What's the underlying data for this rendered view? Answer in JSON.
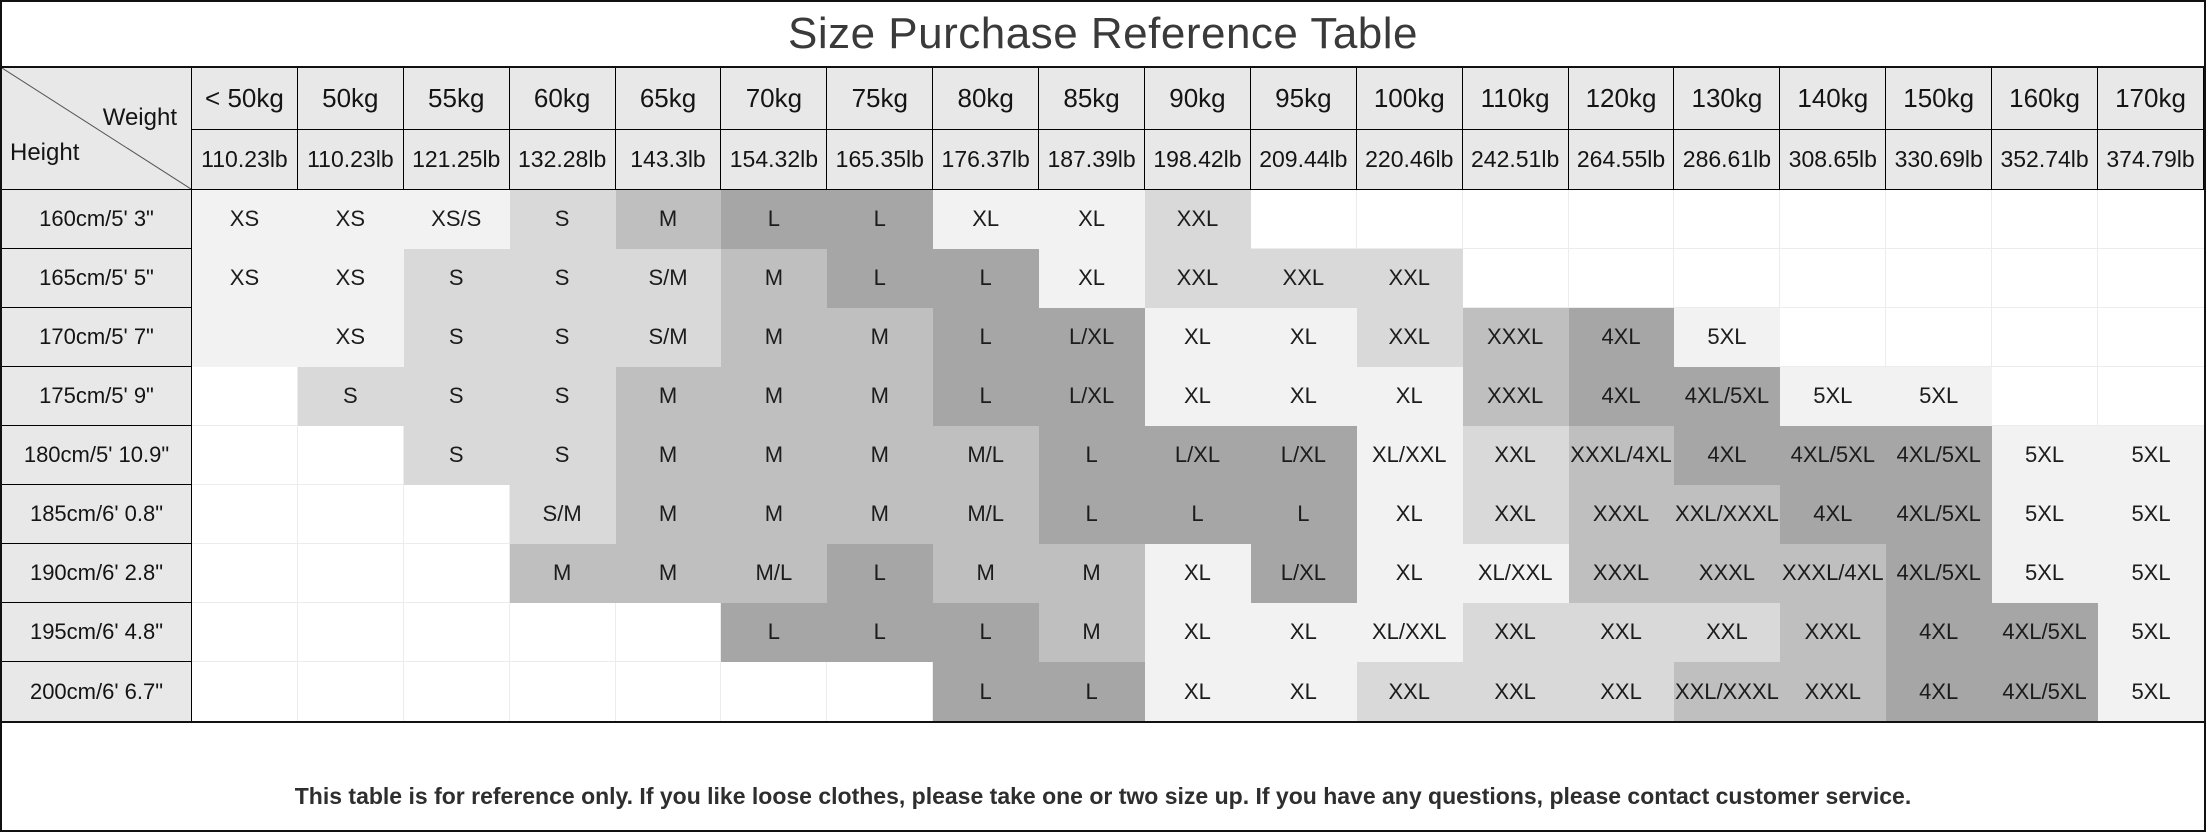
{
  "title": "Size Purchase Reference Table",
  "corner": {
    "top_label": "Weight",
    "bottom_label": "Height"
  },
  "columns": [
    {
      "kg": "< 50kg",
      "lb": "110.23lb"
    },
    {
      "kg": "50kg",
      "lb": "110.23lb"
    },
    {
      "kg": "55kg",
      "lb": "121.25lb"
    },
    {
      "kg": "60kg",
      "lb": "132.28lb"
    },
    {
      "kg": "65kg",
      "lb": "143.3lb"
    },
    {
      "kg": "70kg",
      "lb": "154.32lb"
    },
    {
      "kg": "75kg",
      "lb": "165.35lb"
    },
    {
      "kg": "80kg",
      "lb": "176.37lb"
    },
    {
      "kg": "85kg",
      "lb": "187.39lb"
    },
    {
      "kg": "90kg",
      "lb": "198.42lb"
    },
    {
      "kg": "95kg",
      "lb": "209.44lb"
    },
    {
      "kg": "100kg",
      "lb": "220.46lb"
    },
    {
      "kg": "110kg",
      "lb": "242.51lb"
    },
    {
      "kg": "120kg",
      "lb": "264.55lb"
    },
    {
      "kg": "130kg",
      "lb": "286.61lb"
    },
    {
      "kg": "140kg",
      "lb": "308.65lb"
    },
    {
      "kg": "150kg",
      "lb": "330.69lb"
    },
    {
      "kg": "160kg",
      "lb": "352.74lb"
    },
    {
      "kg": "170kg",
      "lb": "374.79lb"
    }
  ],
  "rows": [
    {
      "height": "160cm/5' 3\"",
      "cells": [
        {
          "t": "XS",
          "s": 1
        },
        {
          "t": "XS",
          "s": 1
        },
        {
          "t": "XS/S",
          "s": 1
        },
        {
          "t": "S",
          "s": 2
        },
        {
          "t": "M",
          "s": 3
        },
        {
          "t": "L",
          "s": 4
        },
        {
          "t": "L",
          "s": 4
        },
        {
          "t": "XL",
          "s": 1
        },
        {
          "t": "XL",
          "s": 1
        },
        {
          "t": "XXL",
          "s": 2
        },
        {
          "t": "",
          "s": 0
        },
        {
          "t": "",
          "s": 0
        },
        {
          "t": "",
          "s": 0
        },
        {
          "t": "",
          "s": 0
        },
        {
          "t": "",
          "s": 0
        },
        {
          "t": "",
          "s": 0
        },
        {
          "t": "",
          "s": 0
        },
        {
          "t": "",
          "s": 0
        },
        {
          "t": "",
          "s": 0
        }
      ]
    },
    {
      "height": "165cm/5' 5\"",
      "cells": [
        {
          "t": "XS",
          "s": 1
        },
        {
          "t": "XS",
          "s": 1
        },
        {
          "t": "S",
          "s": 2
        },
        {
          "t": "S",
          "s": 2
        },
        {
          "t": "S/M",
          "s": 2
        },
        {
          "t": "M",
          "s": 3
        },
        {
          "t": "L",
          "s": 4
        },
        {
          "t": "L",
          "s": 4
        },
        {
          "t": "XL",
          "s": 1
        },
        {
          "t": "XXL",
          "s": 2
        },
        {
          "t": "XXL",
          "s": 2
        },
        {
          "t": "XXL",
          "s": 2
        },
        {
          "t": "",
          "s": 0
        },
        {
          "t": "",
          "s": 0
        },
        {
          "t": "",
          "s": 0
        },
        {
          "t": "",
          "s": 0
        },
        {
          "t": "",
          "s": 0
        },
        {
          "t": "",
          "s": 0
        },
        {
          "t": "",
          "s": 0
        }
      ]
    },
    {
      "height": "170cm/5' 7\"",
      "cells": [
        {
          "t": "",
          "s": 1
        },
        {
          "t": "XS",
          "s": 1
        },
        {
          "t": "S",
          "s": 2
        },
        {
          "t": "S",
          "s": 2
        },
        {
          "t": "S/M",
          "s": 2
        },
        {
          "t": "M",
          "s": 3
        },
        {
          "t": "M",
          "s": 3
        },
        {
          "t": "L",
          "s": 4
        },
        {
          "t": "L/XL",
          "s": 4
        },
        {
          "t": "XL",
          "s": 1
        },
        {
          "t": "XL",
          "s": 1
        },
        {
          "t": "XXL",
          "s": 2
        },
        {
          "t": "XXXL",
          "s": 3
        },
        {
          "t": "4XL",
          "s": 4
        },
        {
          "t": "5XL",
          "s": 1
        },
        {
          "t": "",
          "s": 0
        },
        {
          "t": "",
          "s": 0
        },
        {
          "t": "",
          "s": 0
        },
        {
          "t": "",
          "s": 0
        }
      ]
    },
    {
      "height": "175cm/5' 9\"",
      "cells": [
        {
          "t": "",
          "s": 0
        },
        {
          "t": "S",
          "s": 2
        },
        {
          "t": "S",
          "s": 2
        },
        {
          "t": "S",
          "s": 2
        },
        {
          "t": "M",
          "s": 3
        },
        {
          "t": "M",
          "s": 3
        },
        {
          "t": "M",
          "s": 3
        },
        {
          "t": "L",
          "s": 4
        },
        {
          "t": "L/XL",
          "s": 4
        },
        {
          "t": "XL",
          "s": 1
        },
        {
          "t": "XL",
          "s": 1
        },
        {
          "t": "XL",
          "s": 1
        },
        {
          "t": "XXXL",
          "s": 3
        },
        {
          "t": "4XL",
          "s": 4
        },
        {
          "t": "4XL/5XL",
          "s": 4
        },
        {
          "t": "5XL",
          "s": 1
        },
        {
          "t": "5XL",
          "s": 1
        },
        {
          "t": "",
          "s": 0
        },
        {
          "t": "",
          "s": 0
        }
      ]
    },
    {
      "height": "180cm/5' 10.9\"",
      "cells": [
        {
          "t": "",
          "s": 0
        },
        {
          "t": "",
          "s": 0
        },
        {
          "t": "S",
          "s": 2
        },
        {
          "t": "S",
          "s": 2
        },
        {
          "t": "M",
          "s": 3
        },
        {
          "t": "M",
          "s": 3
        },
        {
          "t": "M",
          "s": 3
        },
        {
          "t": "M/L",
          "s": 3
        },
        {
          "t": "L",
          "s": 4
        },
        {
          "t": "L/XL",
          "s": 4
        },
        {
          "t": "L/XL",
          "s": 4
        },
        {
          "t": "XL/XXL",
          "s": 1
        },
        {
          "t": "XXL",
          "s": 2
        },
        {
          "t": "XXXL/4XL",
          "s": 3
        },
        {
          "t": "4XL",
          "s": 4
        },
        {
          "t": "4XL/5XL",
          "s": 4
        },
        {
          "t": "4XL/5XL",
          "s": 4
        },
        {
          "t": "5XL",
          "s": 1
        },
        {
          "t": "5XL",
          "s": 1
        }
      ]
    },
    {
      "height": "185cm/6' 0.8\"",
      "cells": [
        {
          "t": "",
          "s": 0
        },
        {
          "t": "",
          "s": 0
        },
        {
          "t": "",
          "s": 0
        },
        {
          "t": "S/M",
          "s": 2
        },
        {
          "t": "M",
          "s": 3
        },
        {
          "t": "M",
          "s": 3
        },
        {
          "t": "M",
          "s": 3
        },
        {
          "t": "M/L",
          "s": 3
        },
        {
          "t": "L",
          "s": 4
        },
        {
          "t": "L",
          "s": 4
        },
        {
          "t": "L",
          "s": 4
        },
        {
          "t": "XL",
          "s": 1
        },
        {
          "t": "XXL",
          "s": 2
        },
        {
          "t": "XXXL",
          "s": 3
        },
        {
          "t": "XXL/XXXL",
          "s": 3
        },
        {
          "t": "4XL",
          "s": 4
        },
        {
          "t": "4XL/5XL",
          "s": 4
        },
        {
          "t": "5XL",
          "s": 1
        },
        {
          "t": "5XL",
          "s": 1
        }
      ]
    },
    {
      "height": "190cm/6' 2.8\"",
      "cells": [
        {
          "t": "",
          "s": 0
        },
        {
          "t": "",
          "s": 0
        },
        {
          "t": "",
          "s": 0
        },
        {
          "t": "M",
          "s": 3
        },
        {
          "t": "M",
          "s": 3
        },
        {
          "t": "M/L",
          "s": 3
        },
        {
          "t": "L",
          "s": 4
        },
        {
          "t": "M",
          "s": 3
        },
        {
          "t": "M",
          "s": 3
        },
        {
          "t": "XL",
          "s": 1
        },
        {
          "t": "L/XL",
          "s": 4
        },
        {
          "t": "XL",
          "s": 1
        },
        {
          "t": "XL/XXL",
          "s": 1
        },
        {
          "t": "XXXL",
          "s": 3
        },
        {
          "t": "XXXL",
          "s": 3
        },
        {
          "t": "XXXL/4XL",
          "s": 3
        },
        {
          "t": "4XL/5XL",
          "s": 4
        },
        {
          "t": "5XL",
          "s": 1
        },
        {
          "t": "5XL",
          "s": 1
        }
      ]
    },
    {
      "height": "195cm/6' 4.8\"",
      "cells": [
        {
          "t": "",
          "s": 0
        },
        {
          "t": "",
          "s": 0
        },
        {
          "t": "",
          "s": 0
        },
        {
          "t": "",
          "s": 0
        },
        {
          "t": "",
          "s": 0
        },
        {
          "t": "L",
          "s": 4
        },
        {
          "t": "L",
          "s": 4
        },
        {
          "t": "L",
          "s": 4
        },
        {
          "t": "M",
          "s": 3
        },
        {
          "t": "XL",
          "s": 1
        },
        {
          "t": "XL",
          "s": 1
        },
        {
          "t": "XL/XXL",
          "s": 1
        },
        {
          "t": "XXL",
          "s": 2
        },
        {
          "t": "XXL",
          "s": 2
        },
        {
          "t": "XXL",
          "s": 2
        },
        {
          "t": "XXXL",
          "s": 3
        },
        {
          "t": "4XL",
          "s": 4
        },
        {
          "t": "4XL/5XL",
          "s": 4
        },
        {
          "t": "5XL",
          "s": 1
        }
      ]
    },
    {
      "height": "200cm/6' 6.7\"",
      "cells": [
        {
          "t": "",
          "s": 0
        },
        {
          "t": "",
          "s": 0
        },
        {
          "t": "",
          "s": 0
        },
        {
          "t": "",
          "s": 0
        },
        {
          "t": "",
          "s": 0
        },
        {
          "t": "",
          "s": 0
        },
        {
          "t": "",
          "s": 0
        },
        {
          "t": "L",
          "s": 4
        },
        {
          "t": "L",
          "s": 4
        },
        {
          "t": "XL",
          "s": 1
        },
        {
          "t": "XL",
          "s": 1
        },
        {
          "t": "XXL",
          "s": 2
        },
        {
          "t": "XXL",
          "s": 2
        },
        {
          "t": "XXL",
          "s": 2
        },
        {
          "t": "XXL/XXXL",
          "s": 3
        },
        {
          "t": "XXXL",
          "s": 3
        },
        {
          "t": "4XL",
          "s": 4
        },
        {
          "t": "4XL/5XL",
          "s": 4
        },
        {
          "t": "5XL",
          "s": 1
        }
      ]
    }
  ],
  "footer": "This table is for reference only. If you like loose clothes, please take one or two size up. If you have any questions, please contact customer service.",
  "shade_colors": {
    "0": "#ffffff",
    "1": "#f2f2f2",
    "2": "#d9d9d9",
    "3": "#bfbfbf",
    "4": "#a6a6a6",
    "grid": "#ececec",
    "header_fill": "#e8e8e8"
  }
}
